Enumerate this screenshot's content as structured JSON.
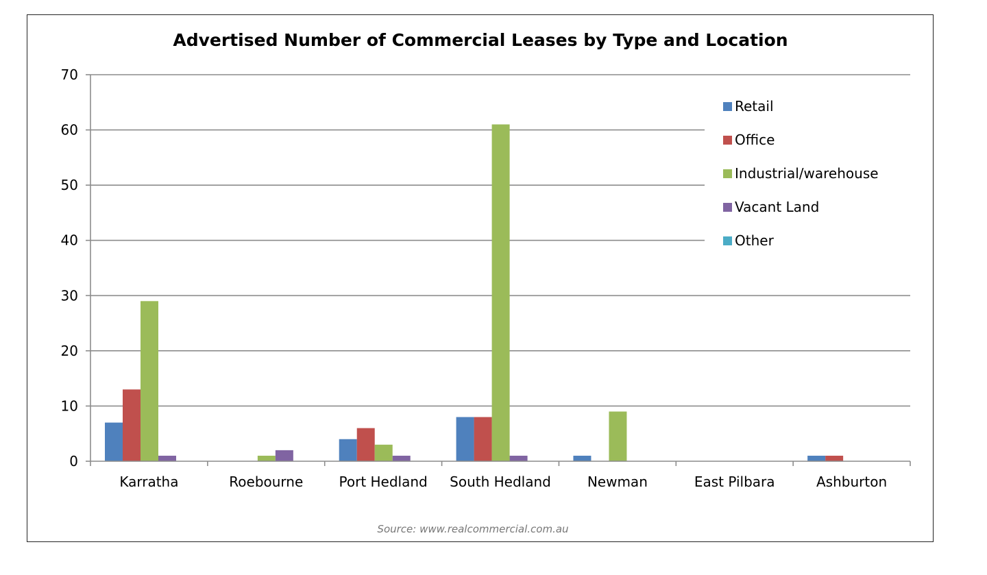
{
  "chart_data": {
    "type": "bar",
    "title": "Advertised Number of Commercial Leases by Type and Location",
    "xlabel": "",
    "ylabel": "",
    "ylim": [
      0,
      70
    ],
    "yticks": [
      0,
      10,
      20,
      30,
      40,
      50,
      60,
      70
    ],
    "grid": true,
    "legend_position": "top-right",
    "categories": [
      "Karratha",
      "Roebourne",
      "Port Hedland",
      "South Hedland",
      "Newman",
      "East Pilbara",
      "Ashburton"
    ],
    "series": [
      {
        "name": "Retail",
        "color": "#4F81BD",
        "values": [
          7,
          0,
          4,
          8,
          1,
          0,
          1
        ]
      },
      {
        "name": "Office",
        "color": "#C0504D",
        "values": [
          13,
          0,
          6,
          8,
          0,
          0,
          1
        ]
      },
      {
        "name": "Industrial/warehouse",
        "color": "#9BBB59",
        "values": [
          29,
          1,
          3,
          61,
          9,
          0,
          0
        ]
      },
      {
        "name": "Vacant Land",
        "color": "#8064A2",
        "values": [
          1,
          2,
          1,
          1,
          0,
          0,
          0
        ]
      },
      {
        "name": "Other",
        "color": "#4BACC6",
        "values": [
          0,
          0,
          0,
          0,
          0,
          0,
          0
        ]
      }
    ],
    "source": "Source: www.realcommercial.com.au"
  }
}
